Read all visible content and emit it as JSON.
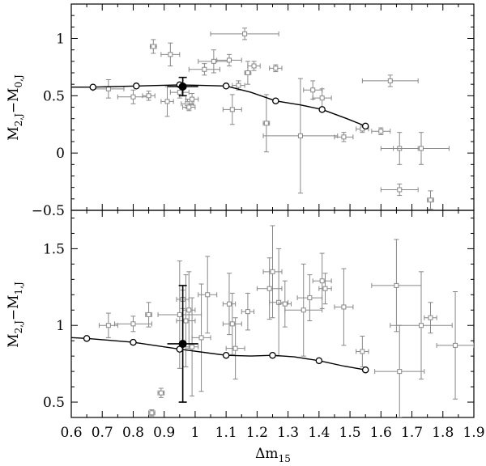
{
  "chart_data": [
    {
      "type": "scatter",
      "panel": "top",
      "ylabel": {
        "main": "M",
        "sub1": "2,J",
        "mid": "−M",
        "sub2": "0,J"
      },
      "xlim": [
        0.6,
        1.9
      ],
      "ylim": [
        -0.5,
        1.3
      ],
      "yticks": [
        -0.5,
        0,
        0.5,
        1
      ],
      "ytick_labels": [
        "−0.5",
        "0",
        "0.5",
        "1"
      ],
      "grid": false,
      "series": [
        {
          "kind": "points-with-error-bars",
          "color": "#888888",
          "points": [
            {
              "x": 0.72,
              "y": 0.56,
              "xerr": 0.05,
              "yerr": 0.08
            },
            {
              "x": 0.8,
              "y": 0.49,
              "xerr": 0.05,
              "yerr": 0.06
            },
            {
              "x": 0.85,
              "y": 0.5,
              "xerr": 0.02,
              "yerr": 0.04
            },
            {
              "x": 0.865,
              "y": 0.93,
              "xerr": 0.01,
              "yerr": 0.06
            },
            {
              "x": 0.91,
              "y": 0.45,
              "xerr": 0.02,
              "yerr": 0.13
            },
            {
              "x": 0.92,
              "y": 0.86,
              "xerr": 0.03,
              "yerr": 0.1
            },
            {
              "x": 0.95,
              "y": 0.53,
              "xerr": 0.03,
              "yerr": 0.05
            },
            {
              "x": 0.975,
              "y": 0.43,
              "xerr": 0.02,
              "yerr": 0.04
            },
            {
              "x": 0.98,
              "y": 0.4,
              "xerr": 0.02,
              "yerr": 0.03
            },
            {
              "x": 0.99,
              "y": 0.47,
              "xerr": 0.02,
              "yerr": 0.05
            },
            {
              "x": 1.03,
              "y": 0.73,
              "xerr": 0.05,
              "yerr": 0.05
            },
            {
              "x": 1.06,
              "y": 0.8,
              "xerr": 0.05,
              "yerr": 0.1
            },
            {
              "x": 1.11,
              "y": 0.81,
              "xerr": 0.04,
              "yerr": 0.05
            },
            {
              "x": 1.12,
              "y": 0.38,
              "xerr": 0.03,
              "yerr": 0.13
            },
            {
              "x": 1.14,
              "y": 0.59,
              "xerr": 0.02,
              "yerr": 0.04
            },
            {
              "x": 1.16,
              "y": 1.04,
              "xerr": 0.11,
              "yerr": 0.05
            },
            {
              "x": 1.17,
              "y": 0.7,
              "xerr": 0.01,
              "yerr": 0.1
            },
            {
              "x": 1.19,
              "y": 0.76,
              "xerr": 0.02,
              "yerr": 0.04
            },
            {
              "x": 1.23,
              "y": 0.26,
              "xerr": 0.01,
              "yerr": 0.25
            },
            {
              "x": 1.26,
              "y": 0.74,
              "xerr": 0.02,
              "yerr": 0.03
            },
            {
              "x": 1.34,
              "y": 0.15,
              "xerr": 0.12,
              "yerr": 0.5
            },
            {
              "x": 1.38,
              "y": 0.55,
              "xerr": 0.03,
              "yerr": 0.08
            },
            {
              "x": 1.41,
              "y": 0.48,
              "xerr": 0.03,
              "yerr": 0.08
            },
            {
              "x": 1.48,
              "y": 0.14,
              "xerr": 0.03,
              "yerr": 0.04
            },
            {
              "x": 1.54,
              "y": 0.21,
              "xerr": 0.02,
              "yerr": 0.03
            },
            {
              "x": 1.6,
              "y": 0.19,
              "xerr": 0.03,
              "yerr": 0.03
            },
            {
              "x": 1.63,
              "y": 0.63,
              "xerr": 0.09,
              "yerr": 0.05
            },
            {
              "x": 1.66,
              "y": -0.32,
              "xerr": 0.06,
              "yerr": 0.05
            },
            {
              "x": 1.66,
              "y": 0.04,
              "xerr": 0.06,
              "yerr": 0.14
            },
            {
              "x": 1.73,
              "y": 0.04,
              "xerr": 0.09,
              "yerr": 0.14
            },
            {
              "x": 1.76,
              "y": -0.41,
              "xerr": 0.01,
              "yerr": 0.08
            }
          ]
        },
        {
          "kind": "curve-with-open-circles",
          "color": "#000000",
          "curve": [
            [
              0.55,
              0.575
            ],
            [
              0.67,
              0.575
            ],
            [
              0.81,
              0.585
            ],
            [
              0.95,
              0.595
            ],
            [
              1.1,
              0.585
            ],
            [
              1.18,
              0.53
            ],
            [
              1.26,
              0.455
            ],
            [
              1.34,
              0.42
            ],
            [
              1.41,
              0.38
            ],
            [
              1.49,
              0.3
            ],
            [
              1.55,
              0.235
            ]
          ],
          "markers": [
            [
              0.67,
              0.575
            ],
            [
              0.81,
              0.585
            ],
            [
              0.95,
              0.595
            ],
            [
              1.1,
              0.585
            ],
            [
              1.26,
              0.455
            ],
            [
              1.41,
              0.38
            ],
            [
              1.55,
              0.235
            ]
          ]
        },
        {
          "kind": "filled-point-with-error-bars",
          "color": "#000000",
          "points": [
            {
              "x": 0.96,
              "y": 0.58,
              "xerr": 0.05,
              "yerr": 0.08
            }
          ]
        }
      ]
    },
    {
      "type": "scatter",
      "panel": "bottom",
      "xlabel": {
        "main": "Δm",
        "sub": "15"
      },
      "ylabel": {
        "main": "M",
        "sub1": "2,J",
        "mid": "−M",
        "sub2": "1,J"
      },
      "xlim": [
        0.6,
        1.9
      ],
      "ylim": [
        0.4,
        1.75
      ],
      "xticks": [
        0.6,
        0.7,
        0.8,
        0.9,
        1.0,
        1.1,
        1.2,
        1.3,
        1.4,
        1.5,
        1.6,
        1.7,
        1.8,
        1.9
      ],
      "xtick_labels": [
        "0.6",
        "0.7",
        "0.8",
        "0.9",
        "1",
        "1.1",
        "1.2",
        "1.3",
        "1.4",
        "1.5",
        "1.6",
        "1.7",
        "1.8",
        "1.9"
      ],
      "yticks": [
        0.5,
        1,
        1.5
      ],
      "ytick_labels": [
        "0.5",
        "1",
        "1.5"
      ],
      "grid": false,
      "series": [
        {
          "kind": "points-with-error-bars",
          "color": "#888888",
          "points": [
            {
              "x": 0.72,
              "y": 1.0,
              "xerr": 0.03,
              "yerr": 0.08
            },
            {
              "x": 0.8,
              "y": 1.01,
              "xerr": 0.06,
              "yerr": 0.05
            },
            {
              "x": 0.85,
              "y": 1.07,
              "xerr": 0.01,
              "yerr": 0.08
            },
            {
              "x": 0.86,
              "y": 0.43,
              "xerr": 0.01,
              "yerr": 0.02
            },
            {
              "x": 0.89,
              "y": 0.56,
              "xerr": 0.01,
              "yerr": 0.03
            },
            {
              "x": 0.95,
              "y": 1.07,
              "xerr": 0.07,
              "yerr": 0.35
            },
            {
              "x": 0.96,
              "y": 1.17,
              "xerr": 0.02,
              "yerr": 0.06
            },
            {
              "x": 0.97,
              "y": 1.03,
              "xerr": 0.03,
              "yerr": 0.3
            },
            {
              "x": 0.98,
              "y": 1.1,
              "xerr": 0.02,
              "yerr": 0.25
            },
            {
              "x": 0.99,
              "y": 0.86,
              "xerr": 0.02,
              "yerr": 0.32
            },
            {
              "x": 1.02,
              "y": 0.92,
              "xerr": 0.03,
              "yerr": 0.35
            },
            {
              "x": 1.04,
              "y": 1.2,
              "xerr": 0.03,
              "yerr": 0.25
            },
            {
              "x": 1.11,
              "y": 1.14,
              "xerr": 0.02,
              "yerr": 0.2
            },
            {
              "x": 1.12,
              "y": 1.01,
              "xerr": 0.03,
              "yerr": 0.2
            },
            {
              "x": 1.13,
              "y": 0.85,
              "xerr": 0.03,
              "yerr": 0.2
            },
            {
              "x": 1.17,
              "y": 1.09,
              "xerr": 0.02,
              "yerr": 0.12
            },
            {
              "x": 1.24,
              "y": 1.24,
              "xerr": 0.04,
              "yerr": 0.2
            },
            {
              "x": 1.25,
              "y": 1.35,
              "xerr": 0.03,
              "yerr": 0.3
            },
            {
              "x": 1.27,
              "y": 1.15,
              "xerr": 0.03,
              "yerr": 0.35
            },
            {
              "x": 1.29,
              "y": 1.14,
              "xerr": 0.02,
              "yerr": 0.15
            },
            {
              "x": 1.35,
              "y": 1.1,
              "xerr": 0.06,
              "yerr": 0.3
            },
            {
              "x": 1.37,
              "y": 1.18,
              "xerr": 0.04,
              "yerr": 0.15
            },
            {
              "x": 1.41,
              "y": 1.29,
              "xerr": 0.03,
              "yerr": 0.18
            },
            {
              "x": 1.42,
              "y": 1.24,
              "xerr": 0.02,
              "yerr": 0.1
            },
            {
              "x": 1.48,
              "y": 1.12,
              "xerr": 0.03,
              "yerr": 0.25
            },
            {
              "x": 1.54,
              "y": 0.83,
              "xerr": 0.02,
              "yerr": 0.1
            },
            {
              "x": 1.65,
              "y": 1.26,
              "xerr": 0.08,
              "yerr": 0.3
            },
            {
              "x": 1.66,
              "y": 0.7,
              "xerr": 0.08,
              "yerr": 0.3
            },
            {
              "x": 1.73,
              "y": 1.0,
              "xerr": 0.1,
              "yerr": 0.35
            },
            {
              "x": 1.76,
              "y": 1.05,
              "xerr": 0.02,
              "yerr": 0.1
            },
            {
              "x": 1.84,
              "y": 0.87,
              "xerr": 0.06,
              "yerr": 0.35
            }
          ]
        },
        {
          "kind": "curve-with-open-circles",
          "color": "#000000",
          "curve": [
            [
              0.55,
              0.925
            ],
            [
              0.65,
              0.915
            ],
            [
              0.8,
              0.89
            ],
            [
              0.95,
              0.845
            ],
            [
              1.1,
              0.805
            ],
            [
              1.18,
              0.8
            ],
            [
              1.25,
              0.805
            ],
            [
              1.32,
              0.795
            ],
            [
              1.4,
              0.77
            ],
            [
              1.48,
              0.735
            ],
            [
              1.55,
              0.71
            ]
          ],
          "markers": [
            [
              0.65,
              0.915
            ],
            [
              0.8,
              0.89
            ],
            [
              0.95,
              0.845
            ],
            [
              1.1,
              0.805
            ],
            [
              1.25,
              0.805
            ],
            [
              1.4,
              0.77
            ],
            [
              1.55,
              0.71
            ]
          ]
        },
        {
          "kind": "filled-point-with-error-bars",
          "color": "#000000",
          "points": [
            {
              "x": 0.96,
              "y": 0.88,
              "xerr": 0.05,
              "yerr": 0.38
            }
          ]
        }
      ]
    }
  ]
}
